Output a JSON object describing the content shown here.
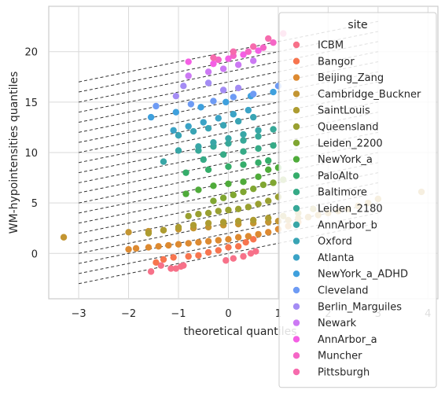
{
  "chart_data": {
    "type": "scatter",
    "xlabel": "theoretical quantiles",
    "ylabel": "WM-hypointensities quantiles",
    "xlim": [
      -3.6,
      4.2
    ],
    "ylim": [
      -4.5,
      24.5
    ],
    "xticks": [
      -3,
      -2,
      -1,
      0,
      1,
      2,
      3,
      4
    ],
    "yticks": [
      0,
      5,
      10,
      15,
      20
    ],
    "grid": true,
    "legend": {
      "title": "site",
      "placement": "right"
    },
    "reference_lines": {
      "style": "dashed",
      "color": "#333333",
      "x_range": [
        -3,
        3
      ],
      "intercepts": [
        0,
        1,
        2,
        3,
        4,
        5,
        6,
        7,
        8,
        9,
        10,
        11,
        12,
        13,
        14,
        15,
        16,
        17,
        18,
        19,
        20
      ],
      "slope": 1
    },
    "series": [
      {
        "name": "ICBM",
        "color": "#f77189",
        "x": [
          -1.55,
          -1.35,
          -1.15,
          -1.05,
          -0.95,
          -0.9,
          -0.05,
          0.1,
          0.3,
          0.45,
          0.55
        ],
        "y": [
          -1.8,
          -1.2,
          -1.5,
          -1.5,
          -1.3,
          -1.2,
          -0.7,
          -0.5,
          -0.3,
          0.0,
          0.2
        ]
      },
      {
        "name": "Bangor",
        "color": "#f7754f",
        "x": [
          -1.45,
          -1.3,
          -1.1,
          -0.8,
          -0.6,
          -0.4,
          -0.2,
          0.0,
          0.2,
          0.35,
          0.5
        ],
        "y": [
          -0.9,
          -0.6,
          -0.4,
          -0.3,
          -0.2,
          0.1,
          0.3,
          0.6,
          0.7,
          1.1,
          1.4
        ]
      },
      {
        "name": "Beijing_Zang",
        "color": "#dd8a31",
        "x": [
          -2.0,
          -1.85,
          -1.6,
          -1.4,
          -1.2,
          -1.0,
          -0.8,
          -0.6,
          -0.4,
          -0.2,
          0.0,
          0.2,
          0.4,
          0.6,
          0.8,
          1.0,
          1.2,
          1.4,
          1.6
        ],
        "y": [
          0.4,
          0.5,
          0.6,
          0.7,
          0.8,
          0.9,
          1.0,
          1.1,
          1.2,
          1.3,
          1.4,
          1.6,
          1.7,
          1.9,
          2.1,
          2.4,
          2.7,
          3.1,
          3.6
        ]
      },
      {
        "name": "Cambridge_Buckner",
        "color": "#c39532",
        "x": [
          -3.3,
          -2.0,
          -1.6,
          -1.3,
          -1.0,
          -0.7,
          -0.4,
          -0.1,
          0.2,
          0.5,
          0.8,
          1.0,
          1.2,
          1.4,
          1.6,
          1.8,
          2.0,
          2.2,
          2.4,
          2.6,
          2.8,
          3.0,
          3.87
        ],
        "y": [
          1.6,
          2.1,
          2.2,
          2.3,
          2.4,
          2.5,
          2.6,
          2.8,
          2.9,
          3.0,
          3.1,
          3.2,
          3.3,
          3.5,
          3.6,
          3.8,
          4.0,
          4.2,
          4.4,
          4.7,
          5.0,
          5.4,
          6.1
        ]
      },
      {
        "name": "SaintLouis",
        "color": "#ad9c31",
        "x": [
          -1.6,
          -1.3,
          -1.0,
          -0.7,
          -0.4,
          -0.1,
          0.2,
          0.5,
          0.8,
          1.1,
          1.4,
          1.7
        ],
        "y": [
          2.0,
          2.3,
          2.6,
          2.8,
          3.0,
          3.1,
          3.2,
          3.3,
          3.5,
          3.7,
          4.0,
          4.4
        ]
      },
      {
        "name": "Queensland",
        "color": "#99a031",
        "x": [
          -0.8,
          -0.6,
          -0.4,
          -0.2,
          0.0,
          0.2,
          0.4,
          0.6,
          0.8,
          1.0
        ],
        "y": [
          3.7,
          3.9,
          4.0,
          4.2,
          4.3,
          4.4,
          4.6,
          4.9,
          5.2,
          5.6
        ]
      },
      {
        "name": "Leiden_2200",
        "color": "#80a632",
        "x": [
          -0.3,
          -0.1,
          0.1,
          0.3,
          0.5,
          0.7,
          0.9,
          1.1
        ],
        "y": [
          5.2,
          5.5,
          5.8,
          6.1,
          6.4,
          6.8,
          7.0,
          7.3
        ]
      },
      {
        "name": "NewYork_a",
        "color": "#4fab3a",
        "x": [
          -0.85,
          -0.6,
          -0.3,
          0.0,
          0.3,
          0.6,
          0.8,
          1.0
        ],
        "y": [
          5.9,
          6.3,
          6.7,
          6.9,
          7.1,
          7.6,
          8.3,
          8.5
        ]
      },
      {
        "name": "PaloAlto",
        "color": "#35ad6a",
        "x": [
          -0.85,
          -0.4,
          0.0,
          0.3,
          0.6,
          0.8
        ],
        "y": [
          8.0,
          8.3,
          8.6,
          8.8,
          9.0,
          9.2
        ]
      },
      {
        "name": "Baltimore",
        "color": "#36aa86",
        "x": [
          -0.5,
          -0.1,
          0.3,
          0.6,
          0.9
        ],
        "y": [
          9.3,
          9.8,
          10.1,
          10.4,
          10.7
        ]
      },
      {
        "name": "Leiden_2180",
        "color": "#37a898",
        "x": [
          -0.6,
          -0.3,
          0.0,
          0.3,
          0.6,
          0.9
        ],
        "y": [
          10.2,
          10.6,
          10.9,
          11.2,
          11.6,
          12.3
        ]
      },
      {
        "name": "AnnArbor_b",
        "color": "#38a6a6",
        "x": [
          -1.3,
          -1.0,
          -0.6,
          -0.3,
          0.0,
          0.3,
          0.6
        ],
        "y": [
          9.1,
          10.2,
          10.6,
          11.0,
          11.4,
          11.8,
          12.2
        ]
      },
      {
        "name": "Oxford",
        "color": "#39a4b4",
        "x": [
          -1.0,
          -0.7,
          -0.4,
          -0.1,
          0.2,
          0.5
        ],
        "y": [
          11.7,
          12.1,
          12.4,
          12.7,
          13.1,
          13.5
        ]
      },
      {
        "name": "Atlanta",
        "color": "#3ba3c6",
        "x": [
          -1.1,
          -0.8,
          -0.5,
          -0.2,
          0.1,
          0.4
        ],
        "y": [
          12.2,
          12.6,
          13.0,
          13.4,
          13.8,
          14.2
        ]
      },
      {
        "name": "NewYork_a_ADHD",
        "color": "#3fa0dd",
        "x": [
          -1.55,
          -1.05,
          -0.55,
          -0.05,
          0.45,
          0.9
        ],
        "y": [
          13.5,
          14.0,
          14.5,
          15.0,
          15.6,
          16.0
        ]
      },
      {
        "name": "Cleveland",
        "color": "#6e9bf4",
        "x": [
          -1.45,
          -0.75,
          -0.3,
          0.1,
          0.5,
          1.0
        ],
        "y": [
          14.6,
          14.8,
          15.1,
          15.5,
          15.8,
          16.6
        ]
      },
      {
        "name": "Berlin_Marguiles",
        "color": "#a48cf4",
        "x": [
          -1.05,
          -0.9,
          -0.4,
          -0.1,
          0.2
        ],
        "y": [
          15.6,
          16.6,
          16.9,
          16.2,
          16.4
        ]
      },
      {
        "name": "Newark",
        "color": "#cc79f4",
        "x": [
          -0.8,
          -0.4,
          -0.1,
          0.2,
          0.5
        ],
        "y": [
          17.6,
          18.0,
          18.3,
          18.7,
          19.1
        ]
      },
      {
        "name": "AnnArbor_a",
        "color": "#f45fe4",
        "x": [
          -0.8,
          -0.3,
          0.0,
          0.3,
          0.6
        ],
        "y": [
          19.0,
          18.8,
          19.3,
          19.7,
          20.1
        ]
      },
      {
        "name": "Muncher",
        "color": "#f566c6",
        "x": [
          -0.2,
          0.1,
          0.4,
          0.7,
          0.9
        ],
        "y": [
          19.2,
          19.6,
          20.0,
          20.4,
          20.9
        ]
      },
      {
        "name": "Pittsburgh",
        "color": "#f66bad",
        "x": [
          -0.3,
          0.1,
          0.5,
          0.8,
          1.1
        ],
        "y": [
          19.4,
          20.0,
          20.5,
          21.3,
          21.8
        ]
      }
    ]
  }
}
